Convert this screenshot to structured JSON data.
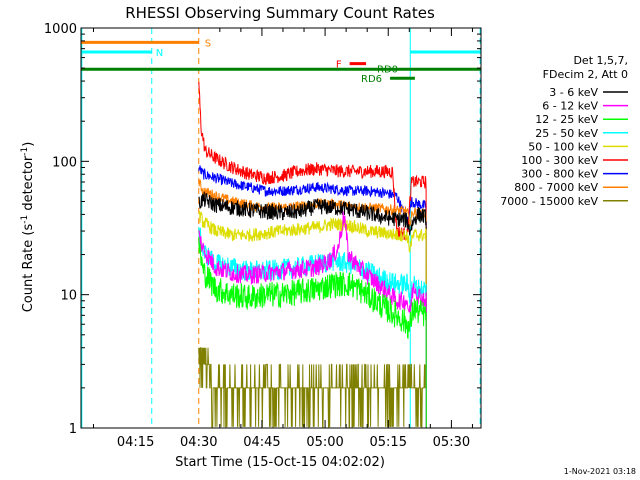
{
  "chart_data": {
    "type": "line",
    "title": "RHESSI Observing Summary Count Rates",
    "xlabel": "Start Time (15-Oct-15 04:02:02)",
    "ylabel_main": "Count Rate (s",
    "ylabel_sup1": "-1",
    "ylabel_mid": " detector",
    "ylabel_sup2": "-1",
    "ylabel_end": ")",
    "yscale": "log",
    "ylim": [
      1,
      1000
    ],
    "xlim_minutes": [
      0,
      95
    ],
    "x_ticks": [
      {
        "label": "04:15",
        "minutes": 12.97
      },
      {
        "label": "04:30",
        "minutes": 27.97
      },
      {
        "label": "04:45",
        "minutes": 42.97
      },
      {
        "label": "05:00",
        "minutes": 57.97
      },
      {
        "label": "05:15",
        "minutes": 72.97
      },
      {
        "label": "05:30",
        "minutes": 87.97
      }
    ],
    "y_ticks": [
      {
        "label": "1",
        "value": 1
      },
      {
        "label": "10",
        "value": 10
      },
      {
        "label": "100",
        "value": 100
      },
      {
        "label": "1000",
        "value": 1000
      }
    ],
    "legend": {
      "placement": "right",
      "header": [
        "Det 1,5,7,",
        "FDecim 2, Att 0"
      ]
    },
    "series": [
      {
        "name": "3 - 6 keV",
        "color": "#000000",
        "noise": 0.06,
        "points": [
          [
            27.97,
            48
          ],
          [
            29,
            52
          ],
          [
            32,
            47
          ],
          [
            36,
            45
          ],
          [
            40,
            43
          ],
          [
            44,
            42
          ],
          [
            48,
            41
          ],
          [
            52,
            42
          ],
          [
            56,
            46
          ],
          [
            60,
            45
          ],
          [
            64,
            44
          ],
          [
            66,
            42
          ],
          [
            68,
            41
          ],
          [
            72,
            38
          ],
          [
            75,
            37
          ],
          [
            77.5,
            36
          ],
          [
            78,
            30
          ],
          [
            79,
            36
          ],
          [
            80,
            40
          ],
          [
            82,
            38
          ]
        ]
      },
      {
        "name": "6 - 12 keV",
        "color": "#ff00ff",
        "noise": 0.07,
        "points": [
          [
            27.97,
            28
          ],
          [
            29,
            22
          ],
          [
            32,
            16
          ],
          [
            36,
            14.5
          ],
          [
            40,
            14
          ],
          [
            44,
            14.5
          ],
          [
            48,
            15
          ],
          [
            52,
            15.5
          ],
          [
            56,
            16
          ],
          [
            59,
            18
          ],
          [
            61,
            22
          ],
          [
            62.5,
            40
          ],
          [
            63.5,
            20
          ],
          [
            66,
            16
          ],
          [
            68,
            14
          ],
          [
            72,
            11
          ],
          [
            75,
            9
          ],
          [
            77.5,
            9
          ],
          [
            78,
            7
          ],
          [
            79,
            12
          ],
          [
            80,
            10
          ],
          [
            82,
            9
          ]
        ]
      },
      {
        "name": "12 - 25 keV",
        "color": "#00ff00",
        "noise": 0.1,
        "points": [
          [
            27.97,
            24
          ],
          [
            29,
            15
          ],
          [
            32,
            11
          ],
          [
            36,
            10
          ],
          [
            40,
            9.5
          ],
          [
            44,
            10
          ],
          [
            48,
            10
          ],
          [
            52,
            10.5
          ],
          [
            56,
            11
          ],
          [
            60,
            12
          ],
          [
            64,
            12
          ],
          [
            68,
            10
          ],
          [
            72,
            8
          ],
          [
            75,
            7
          ],
          [
            77.5,
            6
          ],
          [
            78,
            5.5
          ],
          [
            79,
            8
          ],
          [
            80,
            7.5
          ],
          [
            82,
            7
          ]
        ]
      },
      {
        "name": "25 - 50 keV",
        "color": "#00ffff",
        "noise": 0.08,
        "points": [
          [
            27.97,
            30
          ],
          [
            29,
            21
          ],
          [
            32,
            17
          ],
          [
            36,
            16
          ],
          [
            40,
            15
          ],
          [
            44,
            15
          ],
          [
            48,
            15.5
          ],
          [
            52,
            16
          ],
          [
            56,
            17
          ],
          [
            60,
            18
          ],
          [
            64,
            17
          ],
          [
            68,
            15
          ],
          [
            72,
            13
          ],
          [
            75,
            12
          ],
          [
            77.5,
            12
          ],
          [
            78,
            10
          ],
          [
            79,
            12
          ],
          [
            80,
            11
          ],
          [
            82,
            11
          ]
        ]
      },
      {
        "name": "50 - 100 keV",
        "color": "#dddd00",
        "noise": 0.05,
        "points": [
          [
            27.97,
            40
          ],
          [
            29,
            35
          ],
          [
            32,
            30
          ],
          [
            36,
            28
          ],
          [
            40,
            28
          ],
          [
            44,
            29
          ],
          [
            48,
            30
          ],
          [
            52,
            31
          ],
          [
            56,
            32
          ],
          [
            60,
            34
          ],
          [
            64,
            33
          ],
          [
            68,
            30
          ],
          [
            72,
            29
          ],
          [
            75,
            28
          ],
          [
            77.5,
            28
          ],
          [
            78,
            22
          ],
          [
            79,
            28
          ],
          [
            80,
            28
          ],
          [
            82,
            28
          ]
        ]
      },
      {
        "name": "100 - 300 keV",
        "color": "#ff0000",
        "noise": 0.05,
        "points": [
          [
            27.97,
            400
          ],
          [
            28.5,
            180
          ],
          [
            29.5,
            120
          ],
          [
            32,
            105
          ],
          [
            36,
            90
          ],
          [
            40,
            80
          ],
          [
            44,
            75
          ],
          [
            48,
            78
          ],
          [
            52,
            85
          ],
          [
            56,
            88
          ],
          [
            60,
            85
          ],
          [
            64,
            84
          ],
          [
            68,
            84
          ],
          [
            72,
            84
          ],
          [
            74,
            84
          ],
          [
            75,
            30
          ],
          [
            77.5,
            28
          ],
          [
            78.5,
            70
          ],
          [
            80,
            70
          ],
          [
            82,
            70
          ]
        ]
      },
      {
        "name": "300 - 800 keV",
        "color": "#0000ff",
        "noise": 0.04,
        "points": [
          [
            27.97,
            90
          ],
          [
            29,
            80
          ],
          [
            32,
            75
          ],
          [
            36,
            68
          ],
          [
            40,
            64
          ],
          [
            44,
            60
          ],
          [
            48,
            60
          ],
          [
            52,
            62
          ],
          [
            56,
            64
          ],
          [
            60,
            62
          ],
          [
            64,
            60
          ],
          [
            68,
            60
          ],
          [
            72,
            58
          ],
          [
            75,
            55
          ],
          [
            77.5,
            35
          ],
          [
            78.5,
            50
          ],
          [
            80,
            48
          ],
          [
            82,
            46
          ]
        ]
      },
      {
        "name": "800 - 7000 keV",
        "color": "#ff8000",
        "noise": 0.04,
        "points": [
          [
            27.97,
            70
          ],
          [
            29,
            60
          ],
          [
            32,
            55
          ],
          [
            36,
            50
          ],
          [
            40,
            47
          ],
          [
            44,
            45
          ],
          [
            48,
            45
          ],
          [
            52,
            46
          ],
          [
            56,
            48
          ],
          [
            60,
            48
          ],
          [
            64,
            46
          ],
          [
            68,
            45
          ],
          [
            72,
            44
          ],
          [
            75,
            43
          ],
          [
            77.5,
            42
          ],
          [
            78,
            35
          ],
          [
            79,
            42
          ],
          [
            80,
            41
          ],
          [
            82,
            40
          ]
        ]
      },
      {
        "name": "7000 - 15000 keV",
        "color": "#808000",
        "noise": 0.0,
        "points": [
          [
            27.97,
            3
          ],
          [
            29,
            3
          ],
          [
            32,
            2
          ],
          [
            36,
            2
          ],
          [
            40,
            2
          ],
          [
            44,
            2
          ],
          [
            48,
            2
          ],
          [
            52,
            2
          ],
          [
            56,
            2
          ],
          [
            60,
            2
          ],
          [
            64,
            2
          ],
          [
            68,
            2
          ],
          [
            72,
            2
          ],
          [
            75,
            2
          ],
          [
            78,
            2
          ],
          [
            80,
            2
          ],
          [
            82,
            2
          ]
        ]
      }
    ],
    "indicators": [
      {
        "name": "S",
        "color": "#ff8000",
        "x_start": 0,
        "x_end": 27.97,
        "y_value": 780
      },
      {
        "name": "N",
        "color": "#00ffff",
        "x_start": 0,
        "x_end": 16.8,
        "y_value": 660
      },
      {
        "name": "N",
        "color": "#00ffff",
        "x_start": 78.2,
        "x_end": 95,
        "y_value": 660
      },
      {
        "name": "F",
        "color": "#ff0000",
        "x_start": 63.8,
        "x_end": 67.7,
        "y_value": 540
      },
      {
        "name": "RD0",
        "color": "#008000",
        "x_start": 0,
        "x_end": 95,
        "y_value": 490
      },
      {
        "name": "RD6",
        "color": "#008000",
        "x_start": 73.4,
        "x_end": 79.3,
        "y_value": 420
      }
    ],
    "vertical_markers": [
      {
        "minutes": 0.2,
        "color": "#00ffff",
        "style": "solid"
      },
      {
        "minutes": 16.8,
        "color": "#00ffff",
        "style": "dashed"
      },
      {
        "minutes": 27.97,
        "color": "#ff8000",
        "style": "dashed"
      },
      {
        "minutes": 78.2,
        "color": "#00ffff",
        "style": "solid"
      },
      {
        "minutes": 94.8,
        "color": "#00ffff",
        "style": "dashed"
      }
    ]
  },
  "footer_timestamp": "1-Nov-2021 03:18"
}
